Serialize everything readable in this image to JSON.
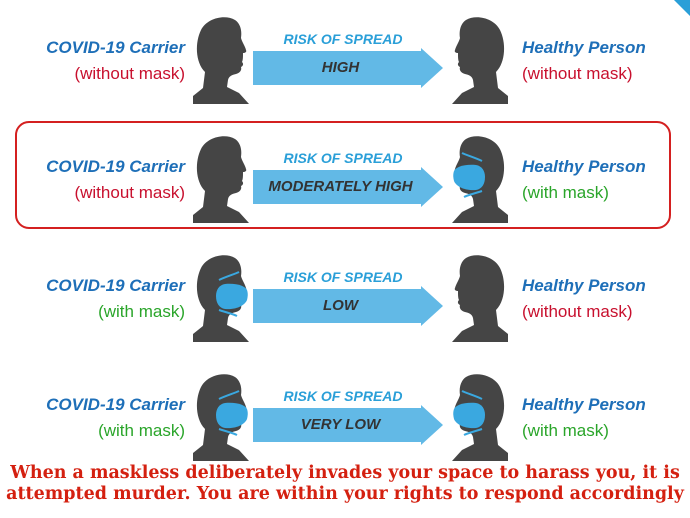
{
  "rows": [
    {
      "left": {
        "title": "COVID-19 Carrier",
        "sub": "(without mask)",
        "masked": false
      },
      "risk_title": "RISK OF SPREAD",
      "risk_level": "HIGH",
      "right": {
        "title": "Healthy Person",
        "sub": "(without mask)",
        "masked": false
      }
    },
    {
      "left": {
        "title": "COVID-19 Carrier",
        "sub": "(without mask)",
        "masked": false
      },
      "risk_title": "RISK OF SPREAD",
      "risk_level": "MODERATELY HIGH",
      "right": {
        "title": "Healthy Person",
        "sub": "(with mask)",
        "masked": true
      }
    },
    {
      "left": {
        "title": "COVID-19 Carrier",
        "sub": "(with mask)",
        "masked": true
      },
      "risk_title": "RISK OF SPREAD",
      "risk_level": "LOW",
      "right": {
        "title": "Healthy Person",
        "sub": "(without mask)",
        "masked": false
      }
    },
    {
      "left": {
        "title": "COVID-19 Carrier",
        "sub": "(with mask)",
        "masked": true
      },
      "risk_title": "RISK OF SPREAD",
      "risk_level": "VERY LOW",
      "right": {
        "title": "Healthy Person",
        "sub": "(with mask)",
        "masked": true
      }
    }
  ],
  "highlighted_row": 1,
  "caption_line1": "When a maskless deliberately invades your space to harass you, it is",
  "caption_line2": "attempted murder. You are within your rights to respond accordingly",
  "colors": {
    "title_blue": "#1e6fb8",
    "without_mask_red": "#c8102e",
    "with_mask_green": "#2aa52a",
    "arrow_blue": "#62b9e6",
    "risk_title_blue": "#2a9fd8",
    "mask_blue": "#3aa8e0",
    "head_gray": "#454545",
    "highlight_red": "#d42020",
    "caption_red": "#d42010"
  },
  "icons": {
    "carrier_head": "head-facing-right-icon",
    "healthy_head": "head-facing-left-icon",
    "mask": "face-mask-icon",
    "arrow": "right-arrow-icon"
  }
}
